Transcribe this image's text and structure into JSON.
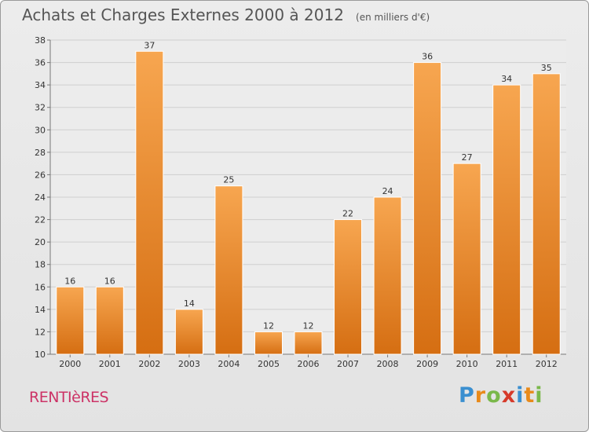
{
  "chart_data": {
    "type": "bar",
    "title": "Achats et Charges Externes 2000 à 2012",
    "subtitle": "(en milliers d'€)",
    "categories": [
      "2000",
      "2001",
      "2002",
      "2003",
      "2004",
      "2005",
      "2006",
      "2007",
      "2008",
      "2009",
      "2010",
      "2011",
      "2012"
    ],
    "values": [
      16,
      16,
      37,
      14,
      25,
      12,
      12,
      22,
      24,
      36,
      27,
      34,
      35
    ],
    "ylim": [
      10,
      38
    ],
    "yticks": [
      10,
      12,
      14,
      16,
      18,
      20,
      22,
      24,
      26,
      28,
      30,
      32,
      34,
      36,
      38
    ],
    "grid": true,
    "bar_color_top": "#f7a650",
    "bar_color_bottom": "#d56e12"
  },
  "footer": {
    "commune": "RENTIèRES",
    "logo_letters": [
      "P",
      "r",
      "o",
      "x",
      "i",
      "t",
      "i"
    ],
    "logo_colors": [
      "#3a8fd0",
      "#e88a1a",
      "#7ab84a",
      "#d63a2a",
      "#3a8fd0",
      "#e88a1a",
      "#7ab84a"
    ]
  }
}
